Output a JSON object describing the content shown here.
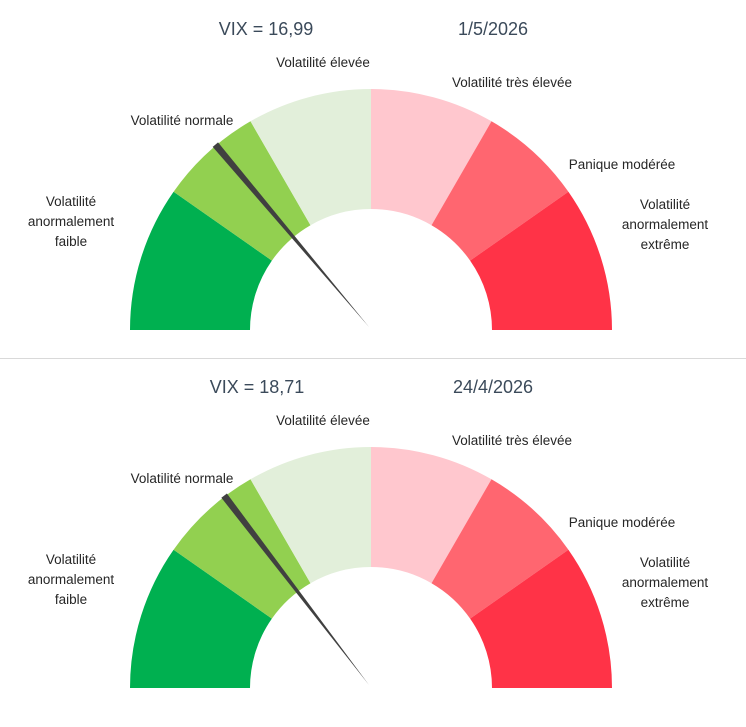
{
  "chart_data": [
    {
      "type": "gauge",
      "title_vix": "VIX = 16,99",
      "date": "1/5/2026",
      "value": 16.99,
      "zones": [
        {
          "label": "Volatilité\nanormalement\nfaible",
          "color": "#00b050"
        },
        {
          "label": "Volatilité normale",
          "color": "#92d050"
        },
        {
          "label": "Volatilité élevée",
          "color": "#e2efda"
        },
        {
          "label": "Volatilité très élevée",
          "color": "#ffc7ce"
        },
        {
          "label": "Panique modérée",
          "color": "#ff6670"
        },
        {
          "label": "Volatilité\nanormalement\nextrême",
          "color": "#ff3347"
        }
      ]
    },
    {
      "type": "gauge",
      "title_vix": "VIX = 18,71",
      "date": "24/4/2026",
      "value": 18.71,
      "zones": [
        {
          "label": "Volatilité\nanormalement\nfaible",
          "color": "#00b050"
        },
        {
          "label": "Volatilité normale",
          "color": "#92d050"
        },
        {
          "label": "Volatilité élevée",
          "color": "#e2efda"
        },
        {
          "label": "Volatilité très élevée",
          "color": "#ffc7ce"
        },
        {
          "label": "Panique modérée",
          "color": "#ff6670"
        },
        {
          "label": "Volatilité\nanormalement\nextrême",
          "color": "#ff3347"
        }
      ]
    }
  ],
  "colors": {
    "needle": "#404040",
    "text": "#262626",
    "header_text": "#3b4a5a"
  }
}
